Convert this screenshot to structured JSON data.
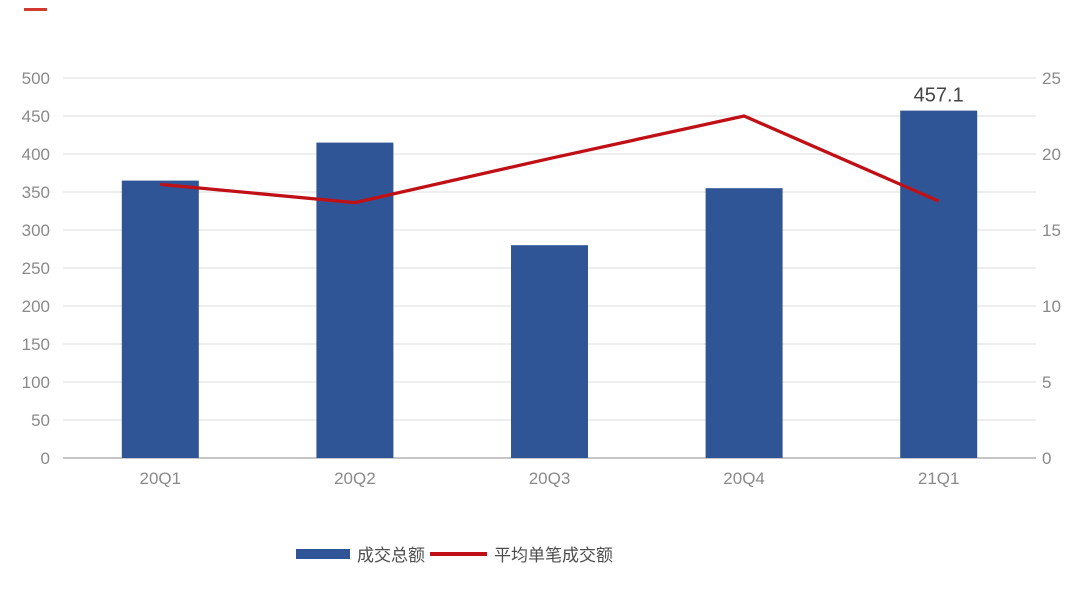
{
  "chart_data": {
    "type": "combo",
    "categories": [
      "20Q1",
      "20Q2",
      "20Q3",
      "20Q4",
      "21Q1"
    ],
    "series": [
      {
        "name": "成交总额",
        "type": "bar",
        "axis": "left",
        "color": "#2f5597",
        "values": [
          365,
          415,
          280,
          355,
          457.1
        ]
      },
      {
        "name": "平均单笔成交额",
        "type": "line",
        "axis": "right",
        "color": "#c01015",
        "values": [
          18.0,
          16.8,
          19.7,
          22.5,
          16.9
        ]
      }
    ],
    "left_axis": {
      "min": 0,
      "max": 500,
      "step": 50,
      "tick_labels": [
        "0",
        "50",
        "100",
        "150",
        "200",
        "250",
        "300",
        "350",
        "400",
        "450",
        "500"
      ]
    },
    "right_axis": {
      "min": 0,
      "max": 25,
      "step": 5,
      "tick_labels": [
        "0",
        "5",
        "10",
        "15",
        "20",
        "25"
      ]
    },
    "data_labels": [
      {
        "series_index": 0,
        "point_index": 4,
        "text": "457.1"
      }
    ],
    "title": "",
    "grid": true,
    "legend_position": "bottom"
  },
  "legend": {
    "items": [
      {
        "label": "成交总额",
        "swatch": "bar",
        "color": "#2f5597"
      },
      {
        "label": "平均单笔成交额",
        "swatch": "line",
        "color": "#c01015"
      }
    ]
  },
  "styles": {
    "background": "#ffffff",
    "grid_color": "#dcdcdc",
    "baseline_color": "#c6c6c6",
    "tick_label_color": "#8a8a8a",
    "data_label_color": "#454545",
    "legend_text_color": "#4d4d4d",
    "top_left_dash_color": "#d23a2e"
  }
}
